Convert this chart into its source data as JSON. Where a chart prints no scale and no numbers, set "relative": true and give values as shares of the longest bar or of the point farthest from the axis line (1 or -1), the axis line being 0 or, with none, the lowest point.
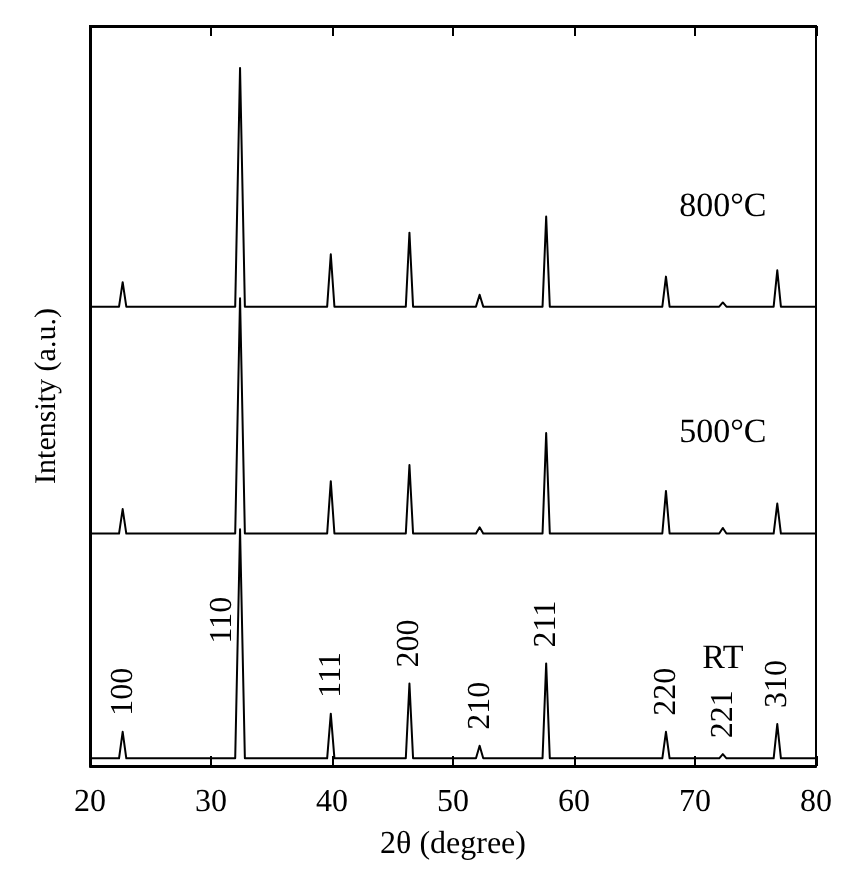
{
  "chart_data": {
    "type": "line",
    "relative": true,
    "xlabel": "2θ (degree)",
    "ylabel": "Intensity (a.u.)",
    "xlim": [
      20,
      80
    ],
    "xticks": [
      20,
      30,
      40,
      50,
      60,
      70,
      80
    ],
    "grid": false,
    "legend": false,
    "marker": "none",
    "line_style": "solid",
    "x": [
      20,
      22.4,
      22.7,
      23.0,
      32.0,
      32.4,
      32.8,
      39.6,
      39.9,
      40.2,
      46.1,
      46.4,
      46.7,
      51.9,
      52.2,
      52.5,
      57.4,
      57.7,
      58.0,
      67.3,
      67.6,
      67.9,
      72.0,
      72.3,
      72.6,
      76.5,
      76.8,
      77.1,
      80
    ],
    "series": [
      {
        "name": "800°C",
        "color": "#000000",
        "values": [
          0.658,
          0.658,
          0.693,
          0.658,
          0.658,
          1.0,
          0.658,
          0.658,
          0.733,
          0.658,
          0.658,
          0.764,
          0.658,
          0.658,
          0.675,
          0.658,
          0.658,
          0.787,
          0.658,
          0.658,
          0.701,
          0.658,
          0.658,
          0.664,
          0.658,
          0.658,
          0.71,
          0.658,
          0.658
        ]
      },
      {
        "name": "500°C",
        "color": "#000000",
        "values": [
          0.333,
          0.333,
          0.368,
          0.333,
          0.333,
          0.67,
          0.333,
          0.333,
          0.408,
          0.333,
          0.333,
          0.431,
          0.333,
          0.333,
          0.342,
          0.333,
          0.333,
          0.477,
          0.333,
          0.333,
          0.394,
          0.333,
          0.333,
          0.341,
          0.333,
          0.333,
          0.376,
          0.333,
          0.333
        ]
      },
      {
        "name": "RT",
        "color": "#000000",
        "values": [
          0.011,
          0.011,
          0.049,
          0.011,
          0.011,
          0.339,
          0.011,
          0.011,
          0.075,
          0.011,
          0.011,
          0.118,
          0.011,
          0.011,
          0.029,
          0.011,
          0.011,
          0.147,
          0.011,
          0.011,
          0.049,
          0.011,
          0.011,
          0.017,
          0.011,
          0.011,
          0.06,
          0.011,
          0.011
        ]
      }
    ],
    "annotations": [
      {
        "text": "100",
        "x": 22.7,
        "y": 0.049
      },
      {
        "text": "110",
        "x": 32.4,
        "y": 0.339
      },
      {
        "text": "111",
        "x": 39.9,
        "y": 0.075
      },
      {
        "text": "200",
        "x": 46.4,
        "y": 0.118
      },
      {
        "text": "210",
        "x": 52.2,
        "y": 0.029
      },
      {
        "text": "211",
        "x": 57.7,
        "y": 0.147
      },
      {
        "text": "220",
        "x": 67.6,
        "y": 0.049
      },
      {
        "text": "221",
        "x": 72.3,
        "y": 0.017
      },
      {
        "text": "310",
        "x": 76.8,
        "y": 0.06
      }
    ]
  }
}
